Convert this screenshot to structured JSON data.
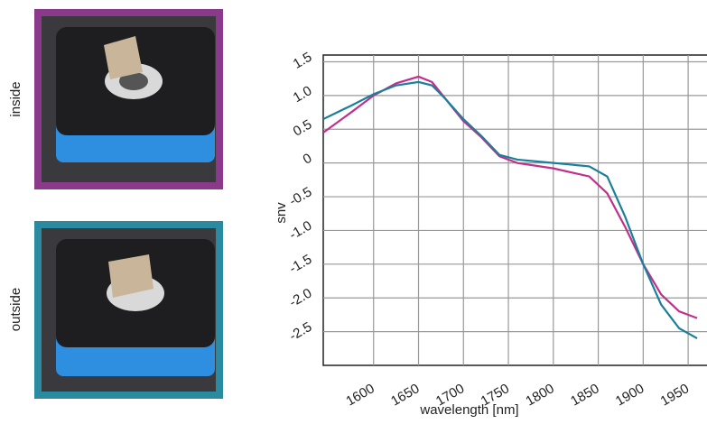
{
  "chart_data": {
    "type": "line",
    "photo_labels": [
      "inside",
      "outside"
    ],
    "xlabel": "wavelength [nm]",
    "ylabel": "snv",
    "x": [
      1544,
      1575,
      1600,
      1625,
      1650,
      1665,
      1680,
      1700,
      1720,
      1740,
      1760,
      1800,
      1840,
      1860,
      1880,
      1900,
      1920,
      1940,
      1960
    ],
    "series": [
      {
        "name": "inside",
        "color": "#c0308a",
        "values": [
          0.45,
          0.75,
          1.0,
          1.18,
          1.28,
          1.2,
          0.95,
          0.62,
          0.38,
          0.1,
          0.0,
          -0.08,
          -0.2,
          -0.45,
          -0.95,
          -1.5,
          -1.95,
          -2.2,
          -2.3
        ]
      },
      {
        "name": "outside",
        "color": "#1a7f9a",
        "values": [
          0.65,
          0.85,
          1.02,
          1.15,
          1.2,
          1.15,
          0.95,
          0.65,
          0.4,
          0.12,
          0.05,
          0.0,
          -0.05,
          -0.2,
          -0.8,
          -1.5,
          -2.1,
          -2.45,
          -2.6
        ]
      }
    ],
    "xlim": [
      1544,
      1971
    ],
    "ylim": [
      -3.0,
      1.6
    ],
    "xticks": [
      1600,
      1650,
      1700,
      1750,
      1800,
      1850,
      1900,
      1950
    ],
    "yticks": [
      {
        "value": 1.5,
        "label": "1.5"
      },
      {
        "value": 1,
        "label": "1.0"
      },
      {
        "value": 0.5,
        "label": "0.5"
      },
      0,
      {
        "value": -0.5,
        "label": "-0.5"
      },
      {
        "value": -1,
        "label": "-1.0"
      },
      {
        "value": -1.5,
        "label": "-1.5"
      },
      {
        "value": -2,
        "label": "-2.0"
      },
      {
        "value": -2.5,
        "label": "-2.5"
      }
    ],
    "grid": true
  }
}
